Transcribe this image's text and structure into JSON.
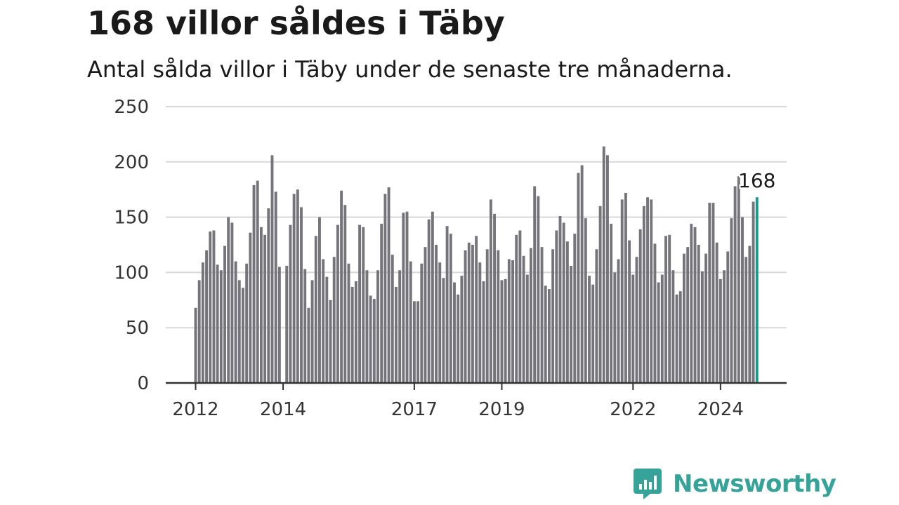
{
  "title": "168 villor såldes i Täby",
  "subtitle": "Antal sålda villor i Täby under de senaste tre månaderna.",
  "logo_text": "Newsworthy",
  "colors": {
    "bar": "#75747a",
    "highlight": "#1a9a8c",
    "grid": "#d8d8d8",
    "axis": "#333333",
    "text": "#1a1a1a",
    "brand": "#36a398"
  },
  "chart_data": {
    "type": "bar",
    "title": "168 villor såldes i Täby",
    "subtitle": "Antal sålda villor i Täby under de senaste tre månaderna.",
    "xlabel": "",
    "ylabel": "",
    "ylim": [
      0,
      250
    ],
    "yticks": [
      0,
      50,
      100,
      150,
      200,
      250
    ],
    "grid": true,
    "start": "2012-01",
    "xtick_labels": [
      {
        "label": "2012",
        "index": 0
      },
      {
        "label": "2014",
        "index": 24
      },
      {
        "label": "2017",
        "index": 60
      },
      {
        "label": "2019",
        "index": 84
      },
      {
        "label": "2022",
        "index": 120
      },
      {
        "label": "2024",
        "index": 144
      }
    ],
    "values": [
      68,
      93,
      109,
      120,
      137,
      138,
      107,
      102,
      124,
      150,
      145,
      110,
      93,
      86,
      108,
      136,
      179,
      183,
      141,
      134,
      158,
      206,
      173,
      105,
      null,
      106,
      143,
      171,
      175,
      159,
      103,
      68,
      93,
      133,
      150,
      112,
      96,
      75,
      114,
      143,
      174,
      161,
      108,
      87,
      92,
      143,
      141,
      102,
      79,
      76,
      102,
      144,
      171,
      177,
      116,
      87,
      102,
      154,
      155,
      110,
      74,
      74,
      108,
      123,
      148,
      155,
      125,
      109,
      95,
      142,
      135,
      91,
      80,
      97,
      120,
      127,
      125,
      133,
      109,
      92,
      121,
      166,
      153,
      120,
      93,
      94,
      112,
      111,
      134,
      138,
      115,
      98,
      122,
      178,
      169,
      123,
      88,
      85,
      121,
      138,
      151,
      145,
      128,
      106,
      135,
      190,
      197,
      149,
      97,
      89,
      121,
      160,
      214,
      206,
      144,
      100,
      112,
      166,
      172,
      129,
      98,
      114,
      139,
      160,
      168,
      166,
      126,
      91,
      98,
      133,
      134,
      102,
      80,
      83,
      117,
      123,
      144,
      141,
      125,
      101,
      117,
      163,
      163,
      127,
      94,
      102,
      119,
      149,
      178,
      187,
      150,
      114,
      124,
      164,
      168
    ],
    "highlight_index": 154,
    "highlight_label": "168"
  }
}
